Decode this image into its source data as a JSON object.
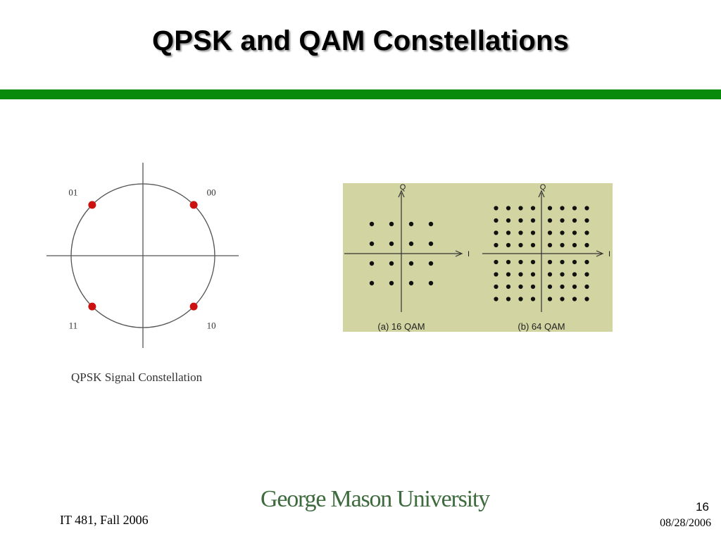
{
  "slide": {
    "title": "QPSK and QAM Constellations",
    "accent_color": "#0a8a0a"
  },
  "qpsk": {
    "caption": "QPSK Signal Constellation",
    "point_color": "#cc1111",
    "points": [
      {
        "label": "01",
        "angle_deg": 135
      },
      {
        "label": "00",
        "angle_deg": 45
      },
      {
        "label": "11",
        "angle_deg": 225
      },
      {
        "label": "10",
        "angle_deg": 315
      }
    ]
  },
  "qam": {
    "panel_color": "#d2d4a2",
    "diagrams": [
      {
        "caption": "(a)  16  QAM",
        "grid": 4,
        "q_label": "Q",
        "i_label": "I"
      },
      {
        "caption": "(b)  64  QAM",
        "grid": 8,
        "q_label": "Q",
        "i_label": "I"
      }
    ]
  },
  "footer": {
    "course": "IT 481, Fall 2006",
    "university": "George Mason University",
    "page_number": "16",
    "date": "08/28/2006"
  }
}
